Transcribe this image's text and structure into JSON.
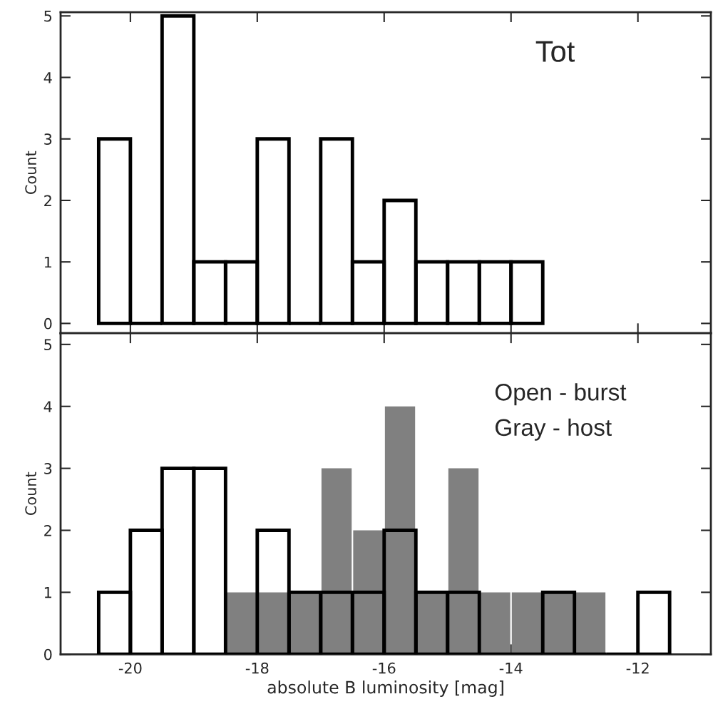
{
  "chart_data": [
    {
      "type": "histogram",
      "ylabel": "Count",
      "annotations": [
        "Tot"
      ],
      "bins": [
        -20.5,
        -20.0,
        -19.5,
        -19.0,
        -18.5,
        -18.0,
        -17.5,
        -17.0,
        -16.5,
        -16.0,
        -15.5,
        -15.0,
        -14.5,
        -14.0,
        -13.5
      ],
      "series": [
        {
          "type": "histogram",
          "line_style": "solid",
          "color": "#000000",
          "values": [
            3,
            0,
            5,
            1,
            1,
            3,
            0,
            3,
            1,
            2,
            1,
            1,
            1,
            1
          ]
        }
      ],
      "xlim": [
        -21.1,
        -10.85
      ],
      "xticks": [
        -20,
        -18,
        -16,
        -14,
        -12
      ],
      "ylim": [
        -0.16,
        5.06
      ],
      "yticks": [
        0,
        1,
        2,
        3,
        4,
        5
      ],
      "tick_labels": "y",
      "grid": false,
      "legend": false
    },
    {
      "type": "histogram",
      "xlabel": "absolute B luminosity [mag]",
      "ylabel": "Count",
      "annotations": [
        "Open - burst",
        "Gray - host"
      ],
      "bins": [
        -20.5,
        -20.0,
        -19.5,
        -19.0,
        -18.5,
        -18.0,
        -17.5,
        -17.0,
        -16.5,
        -16.0,
        -15.5,
        -15.0,
        -14.5,
        -14.0,
        -13.5,
        -13.0,
        -12.5,
        -12.0,
        -11.5
      ],
      "series": [
        {
          "type": "histogram",
          "color": "#808080",
          "values": [
            0,
            0,
            0,
            0,
            1,
            1,
            1,
            3,
            2,
            4,
            1,
            3,
            1,
            1,
            1,
            1,
            0,
            0
          ]
        },
        {
          "type": "histogram",
          "line_style": "solid",
          "color": "#000000",
          "values": [
            1,
            2,
            3,
            3,
            0,
            2,
            1,
            1,
            1,
            2,
            1,
            1,
            0,
            0,
            1,
            0,
            0,
            1
          ]
        }
      ],
      "xlim": [
        -21.1,
        -10.85
      ],
      "xticks": [
        -20,
        -18,
        -16,
        -14,
        -12
      ],
      "ylim": [
        0,
        5.18
      ],
      "yticks": [
        0,
        1,
        2,
        3,
        4,
        5
      ],
      "grid": false,
      "legend": false
    }
  ]
}
